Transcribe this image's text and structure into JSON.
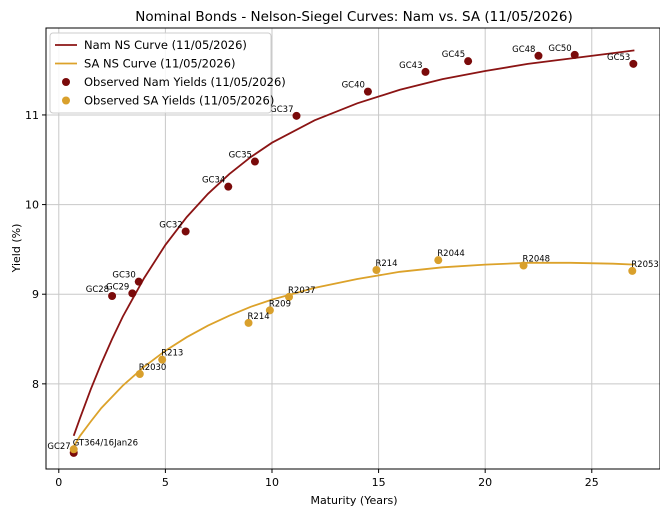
{
  "chart_data": {
    "type": "scatter",
    "title": "Nominal Bonds - Nelson-Siegel Curves: Nam vs. SA (11/05/2026)",
    "xlabel": "Maturity (Years)",
    "ylabel": "Yield (%)",
    "xlim": [
      -0.6,
      28.2
    ],
    "ylim": [
      7.05,
      11.97
    ],
    "xticks": [
      0,
      5,
      10,
      15,
      20,
      25
    ],
    "yticks": [
      8,
      9,
      10,
      11
    ],
    "grid": true,
    "legend_position": "top-left",
    "legend": [
      {
        "label": "Nam NS Curve (11/05/2026)",
        "kind": "line",
        "color": "#8b1414"
      },
      {
        "label": "SA NS Curve (11/05/2026)",
        "kind": "line",
        "color": "#dca22a"
      },
      {
        "label": "Observed Nam Yields (11/05/2026)",
        "kind": "marker",
        "color": "#7a0a0a"
      },
      {
        "label": "Observed SA Yields (11/05/2026)",
        "kind": "marker",
        "color": "#d9a02c"
      }
    ],
    "series": [
      {
        "name": "Nam NS Curve (11/05/2026)",
        "kind": "line",
        "color": "#8b1414",
        "x": [
          0.7,
          1.0,
          1.5,
          2.0,
          2.5,
          3.0,
          4.0,
          5.0,
          6.0,
          7.0,
          8.0,
          9.0,
          10.0,
          12.0,
          14.0,
          16.0,
          18.0,
          20.0,
          22.0,
          24.0,
          26.0,
          27.0
        ],
        "y": [
          7.42,
          7.62,
          7.94,
          8.23,
          8.5,
          8.75,
          9.18,
          9.55,
          9.86,
          10.12,
          10.34,
          10.53,
          10.69,
          10.94,
          11.13,
          11.28,
          11.4,
          11.49,
          11.57,
          11.63,
          11.69,
          11.72
        ]
      },
      {
        "name": "SA NS Curve (11/05/2026)",
        "kind": "line",
        "color": "#dca22a",
        "x": [
          0.7,
          1.0,
          1.5,
          2.0,
          3.0,
          4.0,
          5.0,
          6.0,
          7.0,
          8.0,
          9.0,
          10.0,
          12.0,
          14.0,
          16.0,
          18.0,
          20.0,
          22.0,
          24.0,
          26.0,
          27.0
        ],
        "y": [
          7.3,
          7.42,
          7.58,
          7.73,
          7.98,
          8.19,
          8.37,
          8.52,
          8.65,
          8.76,
          8.86,
          8.94,
          9.07,
          9.17,
          9.25,
          9.3,
          9.33,
          9.35,
          9.35,
          9.34,
          9.33
        ]
      },
      {
        "name": "Observed Nam Yields (11/05/2026)",
        "kind": "scatter",
        "color": "#7a0a0a",
        "points": [
          {
            "x": 0.7,
            "y": 7.23,
            "label": "GC27"
          },
          {
            "x": 2.5,
            "y": 8.98,
            "label": "GC28"
          },
          {
            "x": 3.45,
            "y": 9.01,
            "label": "GC29"
          },
          {
            "x": 3.75,
            "y": 9.14,
            "label": "GC30"
          },
          {
            "x": 5.95,
            "y": 9.7,
            "label": "GC32"
          },
          {
            "x": 7.95,
            "y": 10.2,
            "label": "GC34"
          },
          {
            "x": 9.2,
            "y": 10.48,
            "label": "GC35"
          },
          {
            "x": 11.15,
            "y": 10.99,
            "label": "GC37"
          },
          {
            "x": 14.5,
            "y": 11.26,
            "label": "GC40"
          },
          {
            "x": 17.2,
            "y": 11.48,
            "label": "GC43"
          },
          {
            "x": 19.2,
            "y": 11.6,
            "label": "GC45"
          },
          {
            "x": 22.5,
            "y": 11.66,
            "label": "GC48"
          },
          {
            "x": 24.2,
            "y": 11.67,
            "label": "GC50"
          },
          {
            "x": 26.95,
            "y": 11.57,
            "label": "GC53"
          }
        ]
      },
      {
        "name": "Observed SA Yields (11/05/2026)",
        "kind": "scatter",
        "color": "#d9a02c",
        "points": [
          {
            "x": 0.7,
            "y": 7.27,
            "label": "GT364/16Jan26"
          },
          {
            "x": 3.8,
            "y": 8.11,
            "label": "R2030"
          },
          {
            "x": 4.85,
            "y": 8.27,
            "label": "R213"
          },
          {
            "x": 8.9,
            "y": 8.68,
            "label": "R214"
          },
          {
            "x": 9.9,
            "y": 8.82,
            "label": "R209"
          },
          {
            "x": 10.8,
            "y": 8.97,
            "label": "R2037"
          },
          {
            "x": 14.9,
            "y": 9.27,
            "label": "R214"
          },
          {
            "x": 17.8,
            "y": 9.38,
            "label": "R2044"
          },
          {
            "x": 21.8,
            "y": 9.32,
            "label": "R2048"
          },
          {
            "x": 26.9,
            "y": 9.26,
            "label": "R2053"
          }
        ]
      }
    ]
  }
}
